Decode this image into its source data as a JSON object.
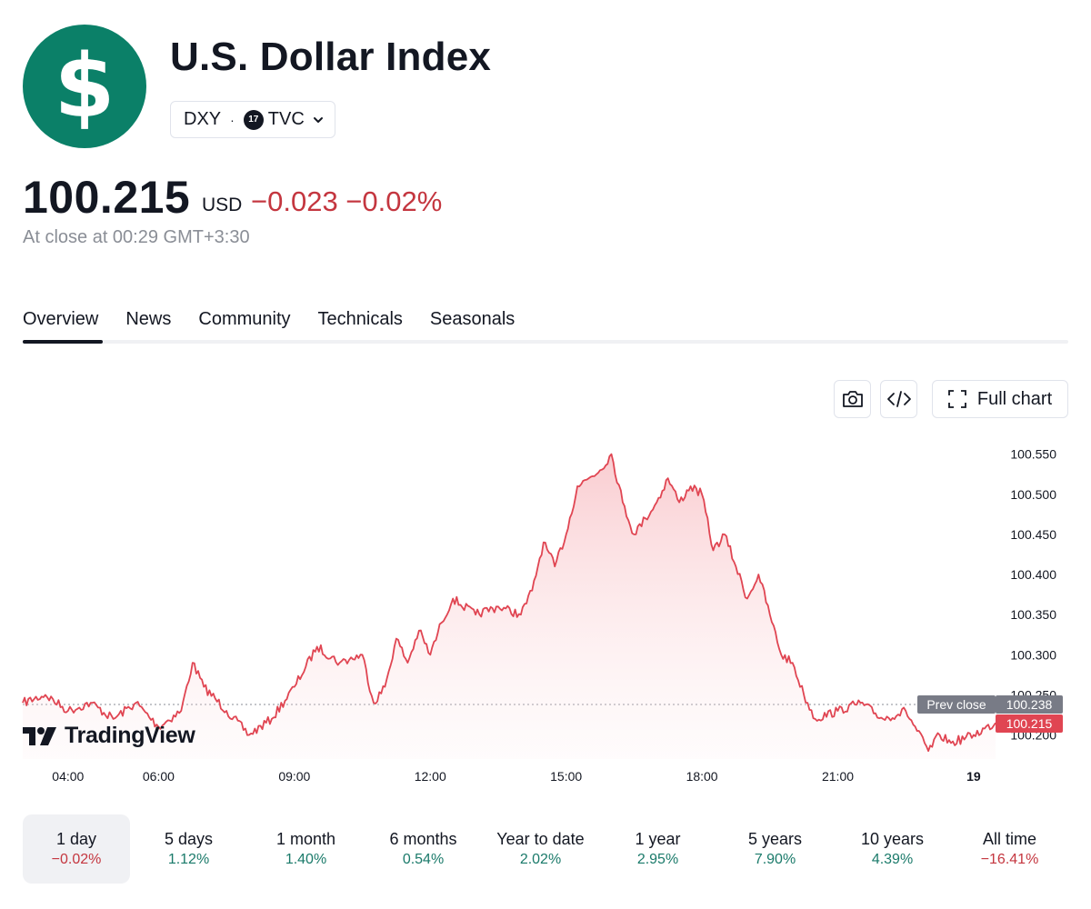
{
  "header": {
    "logo_symbol": "$",
    "title": "U.S. Dollar Index",
    "ticker": "DXY",
    "separator": "·",
    "exchange": "TVC",
    "exchange_icon": "tradingview-badge-icon",
    "brand_color": "#0b8068"
  },
  "quote": {
    "price": "100.215",
    "currency": "USD",
    "change": "−0.023 −0.02%",
    "close_note": "At close at 00:29 GMT+3:30",
    "negative_color": "#c4363f"
  },
  "tabs": [
    "Overview",
    "News",
    "Community",
    "Technicals",
    "Seasonals"
  ],
  "active_tab": "Overview",
  "toolbar": {
    "snapshot_icon": "camera-icon",
    "embed_icon": "code-icon",
    "full_chart_icon": "expand-icon",
    "full_chart_label": "Full chart"
  },
  "chart_data": {
    "type": "area",
    "x_tick_labels": [
      "04:00",
      "06:00",
      "09:00",
      "12:00",
      "15:00",
      "18:00",
      "21:00",
      "19"
    ],
    "y_tick_labels": [
      "100.550",
      "100.500",
      "100.450",
      "100.400",
      "100.350",
      "100.300",
      "100.250",
      "100.200"
    ],
    "ylim": [
      100.17,
      100.57
    ],
    "prev_close_label": "Prev close",
    "prev_close": "100.238",
    "last_value": "100.215",
    "line_color": "#e04552",
    "x": [
      "03:00",
      "03:30",
      "04:00",
      "04:30",
      "05:00",
      "05:30",
      "06:00",
      "06:30",
      "06:45",
      "07:00",
      "07:30",
      "08:00",
      "08:30",
      "09:00",
      "09:30",
      "10:00",
      "10:30",
      "10:45",
      "11:00",
      "11:15",
      "11:30",
      "11:45",
      "12:00",
      "12:15",
      "12:30",
      "13:00",
      "13:30",
      "14:00",
      "14:15",
      "14:30",
      "14:45",
      "15:00",
      "15:15",
      "15:30",
      "15:45",
      "16:00",
      "16:15",
      "16:30",
      "16:45",
      "17:00",
      "17:15",
      "17:30",
      "17:45",
      "18:00",
      "18:15",
      "18:30",
      "18:45",
      "19:00",
      "19:15",
      "19:30",
      "19:45",
      "20:00",
      "20:15",
      "20:30",
      "21:00",
      "21:30",
      "22:00",
      "22:30",
      "23:00",
      "23:15",
      "23:30",
      "00:00",
      "00:29"
    ],
    "y": [
      100.24,
      100.25,
      100.23,
      100.24,
      100.22,
      100.24,
      100.21,
      100.23,
      100.29,
      100.26,
      100.23,
      100.2,
      100.22,
      100.26,
      100.31,
      100.29,
      100.3,
      100.24,
      100.26,
      100.32,
      100.29,
      100.33,
      100.3,
      100.34,
      100.37,
      100.35,
      100.36,
      100.35,
      100.38,
      100.44,
      100.41,
      100.45,
      100.51,
      100.52,
      100.53,
      100.55,
      100.49,
      100.45,
      100.47,
      100.49,
      100.52,
      100.49,
      100.51,
      100.5,
      100.43,
      100.45,
      100.41,
      100.37,
      100.4,
      100.35,
      100.3,
      100.29,
      100.25,
      100.22,
      100.23,
      100.24,
      100.22,
      100.23,
      100.18,
      100.2,
      100.19,
      100.2,
      100.215
    ]
  },
  "watermark": "TradingView",
  "periods": [
    {
      "label": "1 day",
      "value": "−0.02%",
      "sign": "neg"
    },
    {
      "label": "5 days",
      "value": "1.12%",
      "sign": "pos"
    },
    {
      "label": "1 month",
      "value": "1.40%",
      "sign": "pos"
    },
    {
      "label": "6 months",
      "value": "0.54%",
      "sign": "pos"
    },
    {
      "label": "Year to date",
      "value": "2.02%",
      "sign": "pos"
    },
    {
      "label": "1 year",
      "value": "2.95%",
      "sign": "pos"
    },
    {
      "label": "5 years",
      "value": "7.90%",
      "sign": "pos"
    },
    {
      "label": "10 years",
      "value": "4.39%",
      "sign": "pos"
    },
    {
      "label": "All time",
      "value": "−16.41%",
      "sign": "neg"
    }
  ]
}
